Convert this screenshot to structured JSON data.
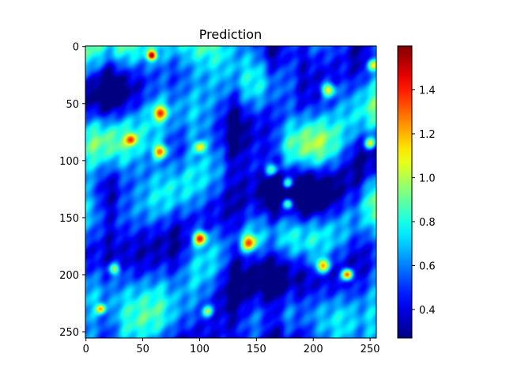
{
  "chart_data": {
    "type": "heatmap",
    "title": "Prediction",
    "xlabel": "",
    "ylabel": "",
    "xlim": [
      0,
      255
    ],
    "ylim": [
      255,
      0
    ],
    "x_ticks": [
      0,
      50,
      100,
      150,
      200,
      250
    ],
    "y_ticks": [
      0,
      50,
      100,
      150,
      200,
      250
    ],
    "x_tick_labels": [
      "0",
      "50",
      "100",
      "150",
      "200",
      "250"
    ],
    "y_tick_labels": [
      "0",
      "50",
      "100",
      "150",
      "200",
      "250"
    ],
    "colormap": "jet",
    "color_range": [
      0.27,
      1.6
    ],
    "colorbar_ticks": [
      0.4,
      0.6,
      0.8,
      1.0,
      1.2,
      1.4
    ],
    "colorbar_tick_labels": [
      "0.4",
      "0.6",
      "0.8",
      "1.0",
      "1.2",
      "1.4"
    ],
    "colorbar_placement": "right",
    "grid": false,
    "field_baseline": 0.62,
    "vertical_bands": [
      {
        "x": 20,
        "width": 9,
        "value": -0.2
      },
      {
        "x": 80,
        "width": 10,
        "value": -0.18
      },
      {
        "x": 130,
        "width": 8,
        "value": -0.22
      },
      {
        "x": 165,
        "width": 9,
        "value": -0.25
      },
      {
        "x": 190,
        "width": 8,
        "value": -0.12
      },
      {
        "x": 240,
        "width": 9,
        "value": -0.16
      }
    ],
    "hotspots": [
      {
        "x": 58,
        "y": 8,
        "radius": 4,
        "value": 1.5
      },
      {
        "x": 65,
        "y": 58,
        "radius": 6,
        "value": 1.25
      },
      {
        "x": 65,
        "y": 92,
        "radius": 6,
        "value": 1.3
      },
      {
        "x": 40,
        "y": 82,
        "radius": 5,
        "value": 1.15
      },
      {
        "x": 100,
        "y": 168,
        "radius": 6,
        "value": 1.45
      },
      {
        "x": 143,
        "y": 172,
        "radius": 7,
        "value": 1.3
      },
      {
        "x": 163,
        "y": 108,
        "radius": 6,
        "value": 1.2
      },
      {
        "x": 178,
        "y": 120,
        "radius": 5,
        "value": 1.2
      },
      {
        "x": 178,
        "y": 138,
        "radius": 5,
        "value": 1.25
      },
      {
        "x": 208,
        "y": 192,
        "radius": 6,
        "value": 1.35
      },
      {
        "x": 230,
        "y": 200,
        "radius": 5,
        "value": 1.55
      },
      {
        "x": 213,
        "y": 38,
        "radius": 6,
        "value": 1.3
      },
      {
        "x": 250,
        "y": 85,
        "radius": 5,
        "value": 1.2
      },
      {
        "x": 252,
        "y": 16,
        "radius": 5,
        "value": 1.15
      },
      {
        "x": 25,
        "y": 195,
        "radius": 5,
        "value": 1.15
      },
      {
        "x": 107,
        "y": 232,
        "radius": 5,
        "value": 1.1
      },
      {
        "x": 13,
        "y": 230,
        "radius": 4,
        "value": 1.2
      },
      {
        "x": 100,
        "y": 88,
        "radius": 5,
        "value": 1.1
      }
    ]
  }
}
